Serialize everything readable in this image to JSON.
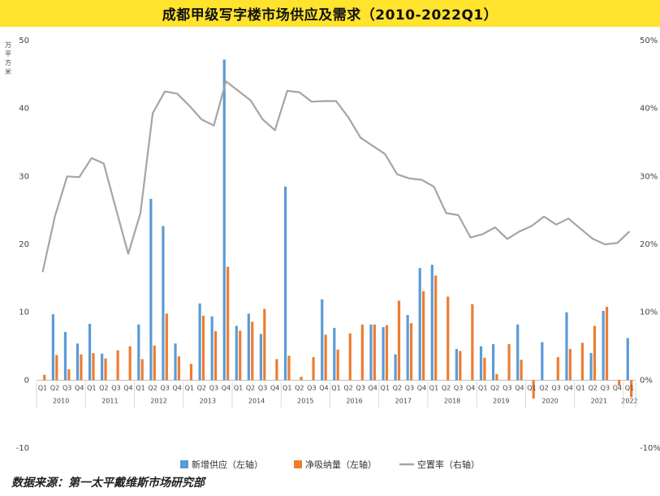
{
  "title": "成都甲级写字楼市场供应及需求（2010-2022Q1）",
  "source": "数据来源：第一太平戴维斯市场研究部",
  "chart_data": {
    "type": "bar",
    "title": "成都甲级写字楼市场供应及需求（2010-2022Q1）",
    "ylabel": "万平方米",
    "ylim": [
      -10,
      50
    ],
    "y_ticks": [
      "-10",
      "0",
      "10",
      "20",
      "30",
      "40",
      "50"
    ],
    "y2lim": [
      -0.1,
      0.5
    ],
    "y2_ticks": [
      "-10%",
      "0%",
      "10%",
      "20%",
      "30%",
      "40%",
      "50%"
    ],
    "quarter_labels": [
      "Q1",
      "Q2",
      "Q3",
      "Q4"
    ],
    "years": [
      "2010",
      "2011",
      "2012",
      "2013",
      "2014",
      "2015",
      "2016",
      "2017",
      "2018",
      "2019",
      "2020",
      "2021",
      "2022"
    ],
    "grid": false,
    "legend": "bottom",
    "colors": {
      "supply": "#5b9bd5",
      "absorption": "#ed7d31",
      "vacancy": "#a5a5a5"
    },
    "series": [
      {
        "name": "新增供应（左轴）",
        "axis": "left",
        "kind": "bar",
        "values": [
          0,
          9.7,
          7.1,
          5.4,
          8.3,
          3.9,
          0,
          0,
          8.2,
          26.7,
          22.7,
          5.4,
          0,
          11.3,
          9.4,
          47.2,
          8.0,
          9.8,
          6.8,
          0,
          28.5,
          0,
          0,
          11.9,
          7.7,
          0,
          0,
          8.2,
          7.8,
          3.8,
          9.6,
          16.5,
          17.0,
          0,
          4.6,
          0,
          5.0,
          5.3,
          0,
          8.2,
          0,
          5.6,
          0,
          10.0,
          0,
          4.0,
          10.2,
          0,
          6.2
        ]
      },
      {
        "name": "净吸纳量（左轴）",
        "axis": "left",
        "kind": "bar",
        "values": [
          0.8,
          3.7,
          1.6,
          3.8,
          4.0,
          3.2,
          4.4,
          5.0,
          3.1,
          5.1,
          9.8,
          3.5,
          2.4,
          9.5,
          7.2,
          16.7,
          7.3,
          8.6,
          10.5,
          3.1,
          3.6,
          0.5,
          3.4,
          6.7,
          4.5,
          6.9,
          8.2,
          8.2,
          8.1,
          11.7,
          8.4,
          13.1,
          15.4,
          12.3,
          4.3,
          11.2,
          3.3,
          0.9,
          5.3,
          3.0,
          -2.7,
          0,
          3.4,
          4.6,
          5.5,
          8.0,
          10.8,
          -0.8,
          -2.5
        ]
      },
      {
        "name": "空置率（右轴）",
        "axis": "right",
        "kind": "line",
        "values": [
          0.159,
          0.241,
          0.3,
          0.299,
          0.327,
          0.319,
          0.252,
          0.186,
          0.246,
          0.393,
          0.425,
          0.422,
          0.404,
          0.384,
          0.375,
          0.44,
          0.426,
          0.412,
          0.384,
          0.368,
          0.426,
          0.424,
          0.41,
          0.411,
          0.411,
          0.387,
          0.357,
          0.345,
          0.333,
          0.303,
          0.297,
          0.295,
          0.285,
          0.246,
          0.243,
          0.21,
          0.215,
          0.225,
          0.208,
          0.219,
          0.227,
          0.241,
          0.229,
          0.238,
          0.223,
          0.208,
          0.2,
          0.202,
          0.219
        ]
      }
    ]
  }
}
